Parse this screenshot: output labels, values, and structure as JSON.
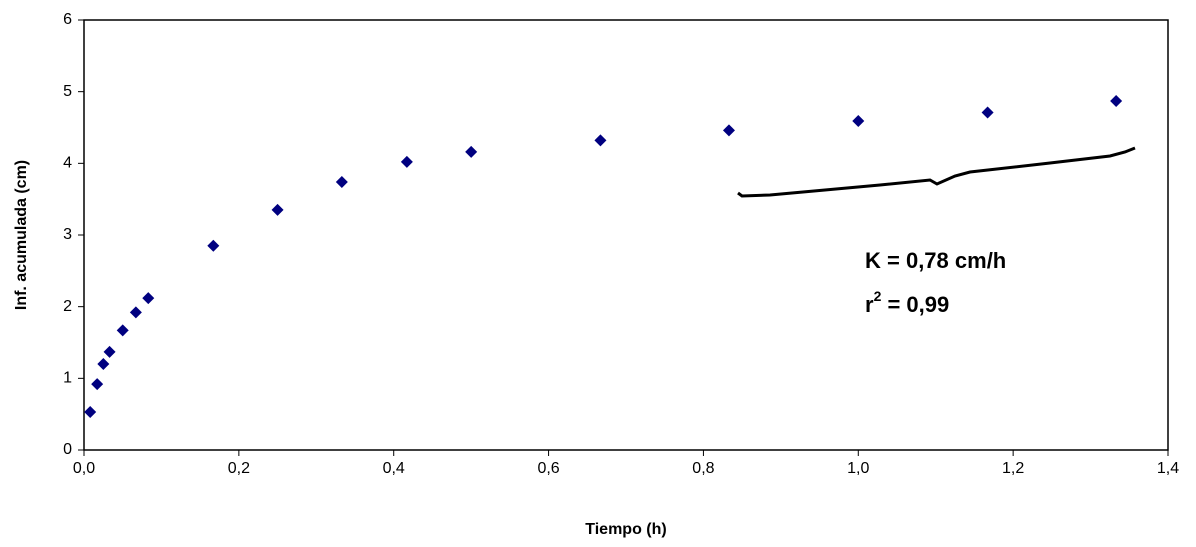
{
  "chart_data": {
    "type": "scatter",
    "xlabel": "Tiempo (h)",
    "ylabel": "Inf. acumulada (cm)",
    "x": [
      0.008,
      0.017,
      0.025,
      0.033,
      0.05,
      0.067,
      0.083,
      0.167,
      0.25,
      0.333,
      0.417,
      0.5,
      0.667,
      0.833,
      1.0,
      1.167,
      1.333
    ],
    "values": [
      0.53,
      0.92,
      1.2,
      1.37,
      1.67,
      1.92,
      2.12,
      2.85,
      3.35,
      3.74,
      4.02,
      4.16,
      4.32,
      4.46,
      4.59,
      4.71,
      4.87
    ],
    "color": "#000080",
    "xlim": [
      0,
      1.4
    ],
    "xticks": [
      {
        "value": 0,
        "label": "0,0"
      },
      {
        "value": 0.2,
        "label": "0,2"
      },
      {
        "value": 0.4,
        "label": "0,4"
      },
      {
        "value": 0.6,
        "label": "0,6"
      },
      {
        "value": 0.8,
        "label": "0,8"
      },
      {
        "value": 1.0,
        "label": "1,0"
      },
      {
        "value": 1.2,
        "label": "1,2"
      },
      {
        "value": 1.4,
        "label": "1,4"
      }
    ],
    "ylim": [
      0,
      6
    ],
    "yticks": [
      0,
      1,
      2,
      3,
      4,
      5,
      6
    ],
    "grid": false,
    "annotations": {
      "k": "K = 0,78 cm/h",
      "r2": {
        "base": "r",
        "sup": "2",
        "rest": " = 0,99"
      }
    }
  }
}
